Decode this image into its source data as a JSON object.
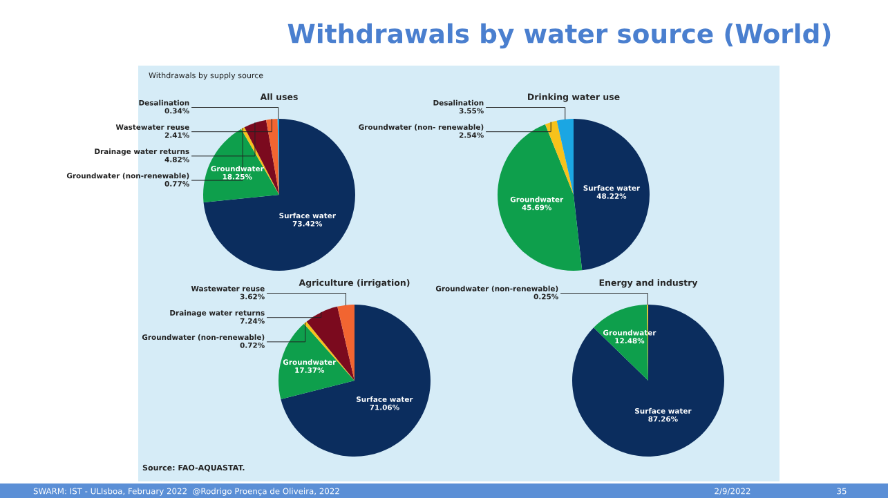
{
  "chart_data": [
    {
      "type": "pie",
      "title": "All uses",
      "categories": [
        "Surface water",
        "Groundwater",
        "Groundwater (non-renewable)",
        "Drainage water returns",
        "Wastewater reuse",
        "Desalination"
      ],
      "values": [
        73.42,
        18.25,
        0.77,
        4.82,
        2.41,
        0.34
      ],
      "value_labels": [
        "73.42%",
        "18.25%",
        "0.77%",
        "4.82%",
        "2.41%",
        "0.34%"
      ],
      "colors": [
        "#0b2d5e",
        "#0e9f4c",
        "#f7c21b",
        "#7b0a1e",
        "#f26531",
        "#1ba6e3"
      ],
      "annotations": [
        "Withdrawals by water source (World)",
        "Withdrawals by supply source",
        "Source: FAO-AQUASTAT.",
        "SWARM: IST - ULIsboa, February 2022  @Rodrigo Proença de Oliveira, 2022",
        "2/9/2022",
        "35"
      ]
    },
    {
      "type": "pie",
      "title": "Drinking water use",
      "categories": [
        "Surface water",
        "Groundwater",
        "Groundwater (non- renewable)",
        "Desalination"
      ],
      "values": [
        48.22,
        45.69,
        2.54,
        3.55
      ],
      "value_labels": [
        "48.22%",
        "45.69%",
        "2.54%",
        "3.55%"
      ],
      "colors": [
        "#0b2d5e",
        "#0e9f4c",
        "#f7c21b",
        "#1ba6e3"
      ]
    },
    {
      "type": "pie",
      "title": "Agriculture (irrigation)",
      "categories": [
        "Surface water",
        "Groundwater",
        "Groundwater (non-renewable)",
        "Drainage water returns",
        "Wastewater reuse"
      ],
      "values": [
        71.06,
        17.37,
        0.72,
        7.24,
        3.62
      ],
      "value_labels": [
        "71.06%",
        "17.37%",
        "0.72%",
        "7.24%",
        "3.62%"
      ],
      "colors": [
        "#0b2d5e",
        "#0e9f4c",
        "#f7c21b",
        "#7b0a1e",
        "#f26531"
      ]
    },
    {
      "type": "pie",
      "title": "Energy and industry",
      "categories": [
        "Surface water",
        "Groundwater",
        "Groundwater (non-renewable)"
      ],
      "values": [
        87.26,
        12.48,
        0.25
      ],
      "value_labels": [
        "87.26%",
        "12.48%",
        "0.25%"
      ],
      "colors": [
        "#0b2d5e",
        "#0e9f4c",
        "#f7c21b"
      ]
    }
  ]
}
